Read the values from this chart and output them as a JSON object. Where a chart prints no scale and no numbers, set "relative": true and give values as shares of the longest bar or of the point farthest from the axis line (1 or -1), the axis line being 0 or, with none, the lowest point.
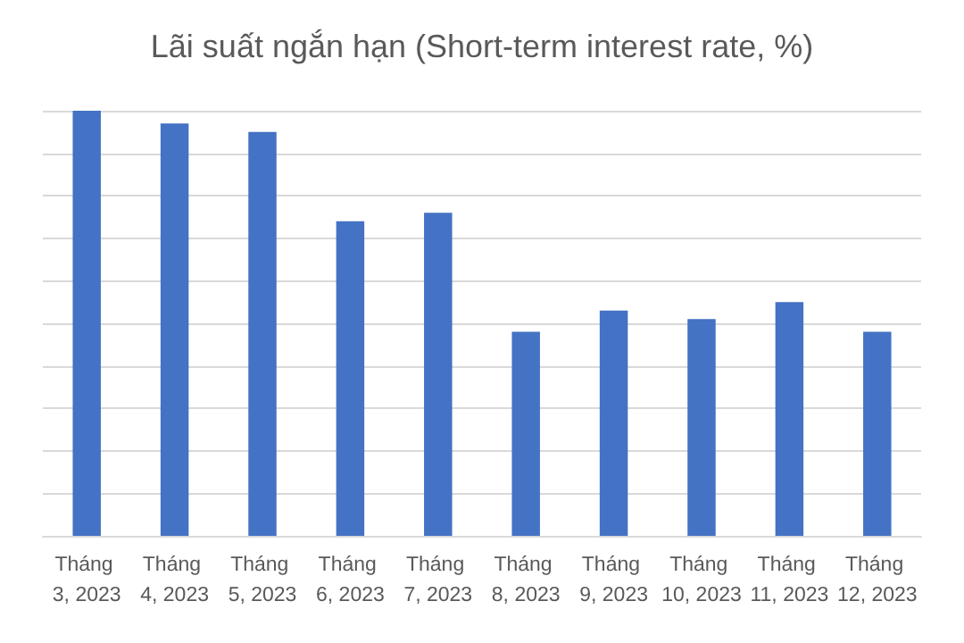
{
  "chart_data": {
    "type": "bar",
    "title": "Lãi suất ngắn hạn (Short-term interest rate, %)",
    "categories": [
      "Tháng 3, 2023",
      "Tháng 4, 2023",
      "Tháng 5, 2023",
      "Tháng 6, 2023",
      "Tháng 7, 2023",
      "Tháng 8, 2023",
      "Tháng 9, 2023",
      "Tháng 10, 2023",
      "Tháng 11, 2023",
      "Tháng 12, 2023"
    ],
    "values": [
      1,
      0.97,
      0.95,
      0.74,
      0.76,
      0.48,
      0.53,
      0.51,
      0.55,
      0.48
    ],
    "color": "#4472c4",
    "relative": true,
    "grid": "y"
  }
}
